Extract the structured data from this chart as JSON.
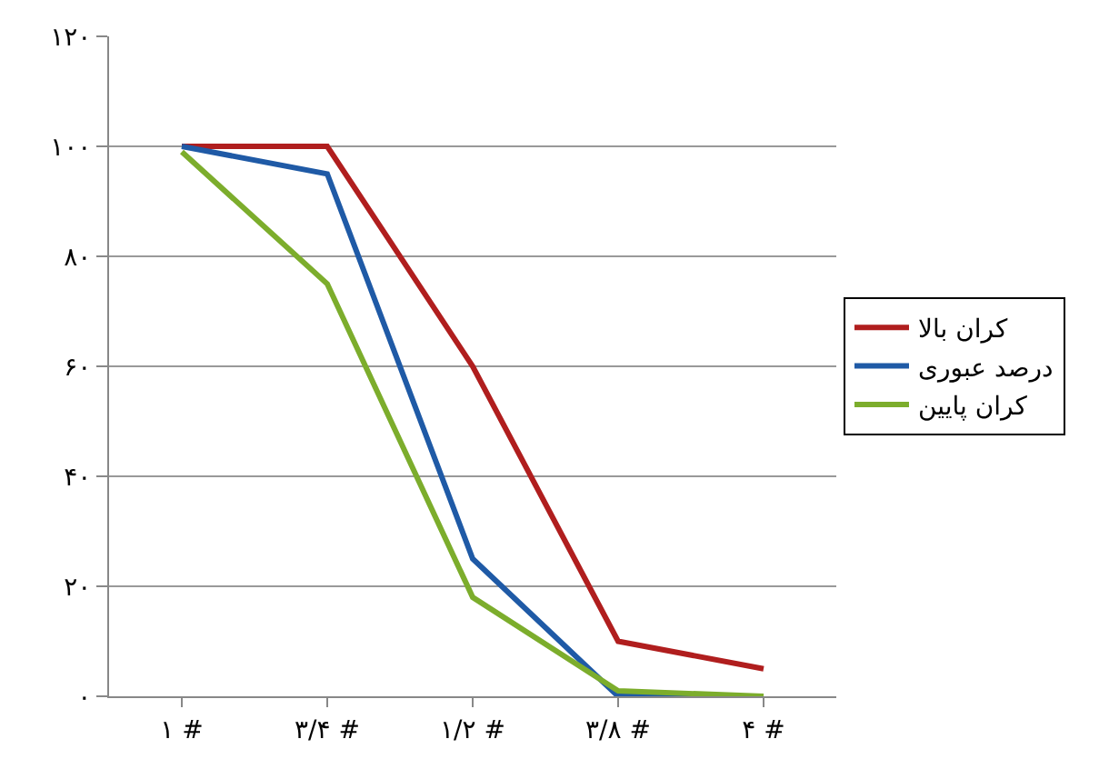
{
  "chart_data": {
    "type": "line",
    "categories": [
      "۱ #",
      "۳/۴ #",
      "۱/۲ #",
      "۳/۸ #",
      "۴ #"
    ],
    "series": [
      {
        "name": "کران بالا",
        "color": "#b01e1e",
        "values": [
          100,
          100,
          60,
          10,
          5
        ]
      },
      {
        "name": "درصد عبوری",
        "color": "#1f5aa6",
        "values": [
          100,
          95,
          25,
          0,
          0
        ]
      },
      {
        "name": "کران پایین",
        "color": "#7cad2c",
        "values": [
          99,
          75,
          18,
          1,
          0
        ]
      }
    ],
    "ylim": [
      0,
      120
    ],
    "yticks": [
      {
        "value": 0,
        "label": "۰"
      },
      {
        "value": 20,
        "label": "۲۰"
      },
      {
        "value": 40,
        "label": "۴۰"
      },
      {
        "value": 60,
        "label": "۶۰"
      },
      {
        "value": 80,
        "label": "۸۰"
      },
      {
        "value": 100,
        "label": "۱۰۰"
      },
      {
        "value": 120,
        "label": "۱۲۰"
      }
    ],
    "grid": "y",
    "legend": "right",
    "marker": "none",
    "line_style": "solid"
  }
}
